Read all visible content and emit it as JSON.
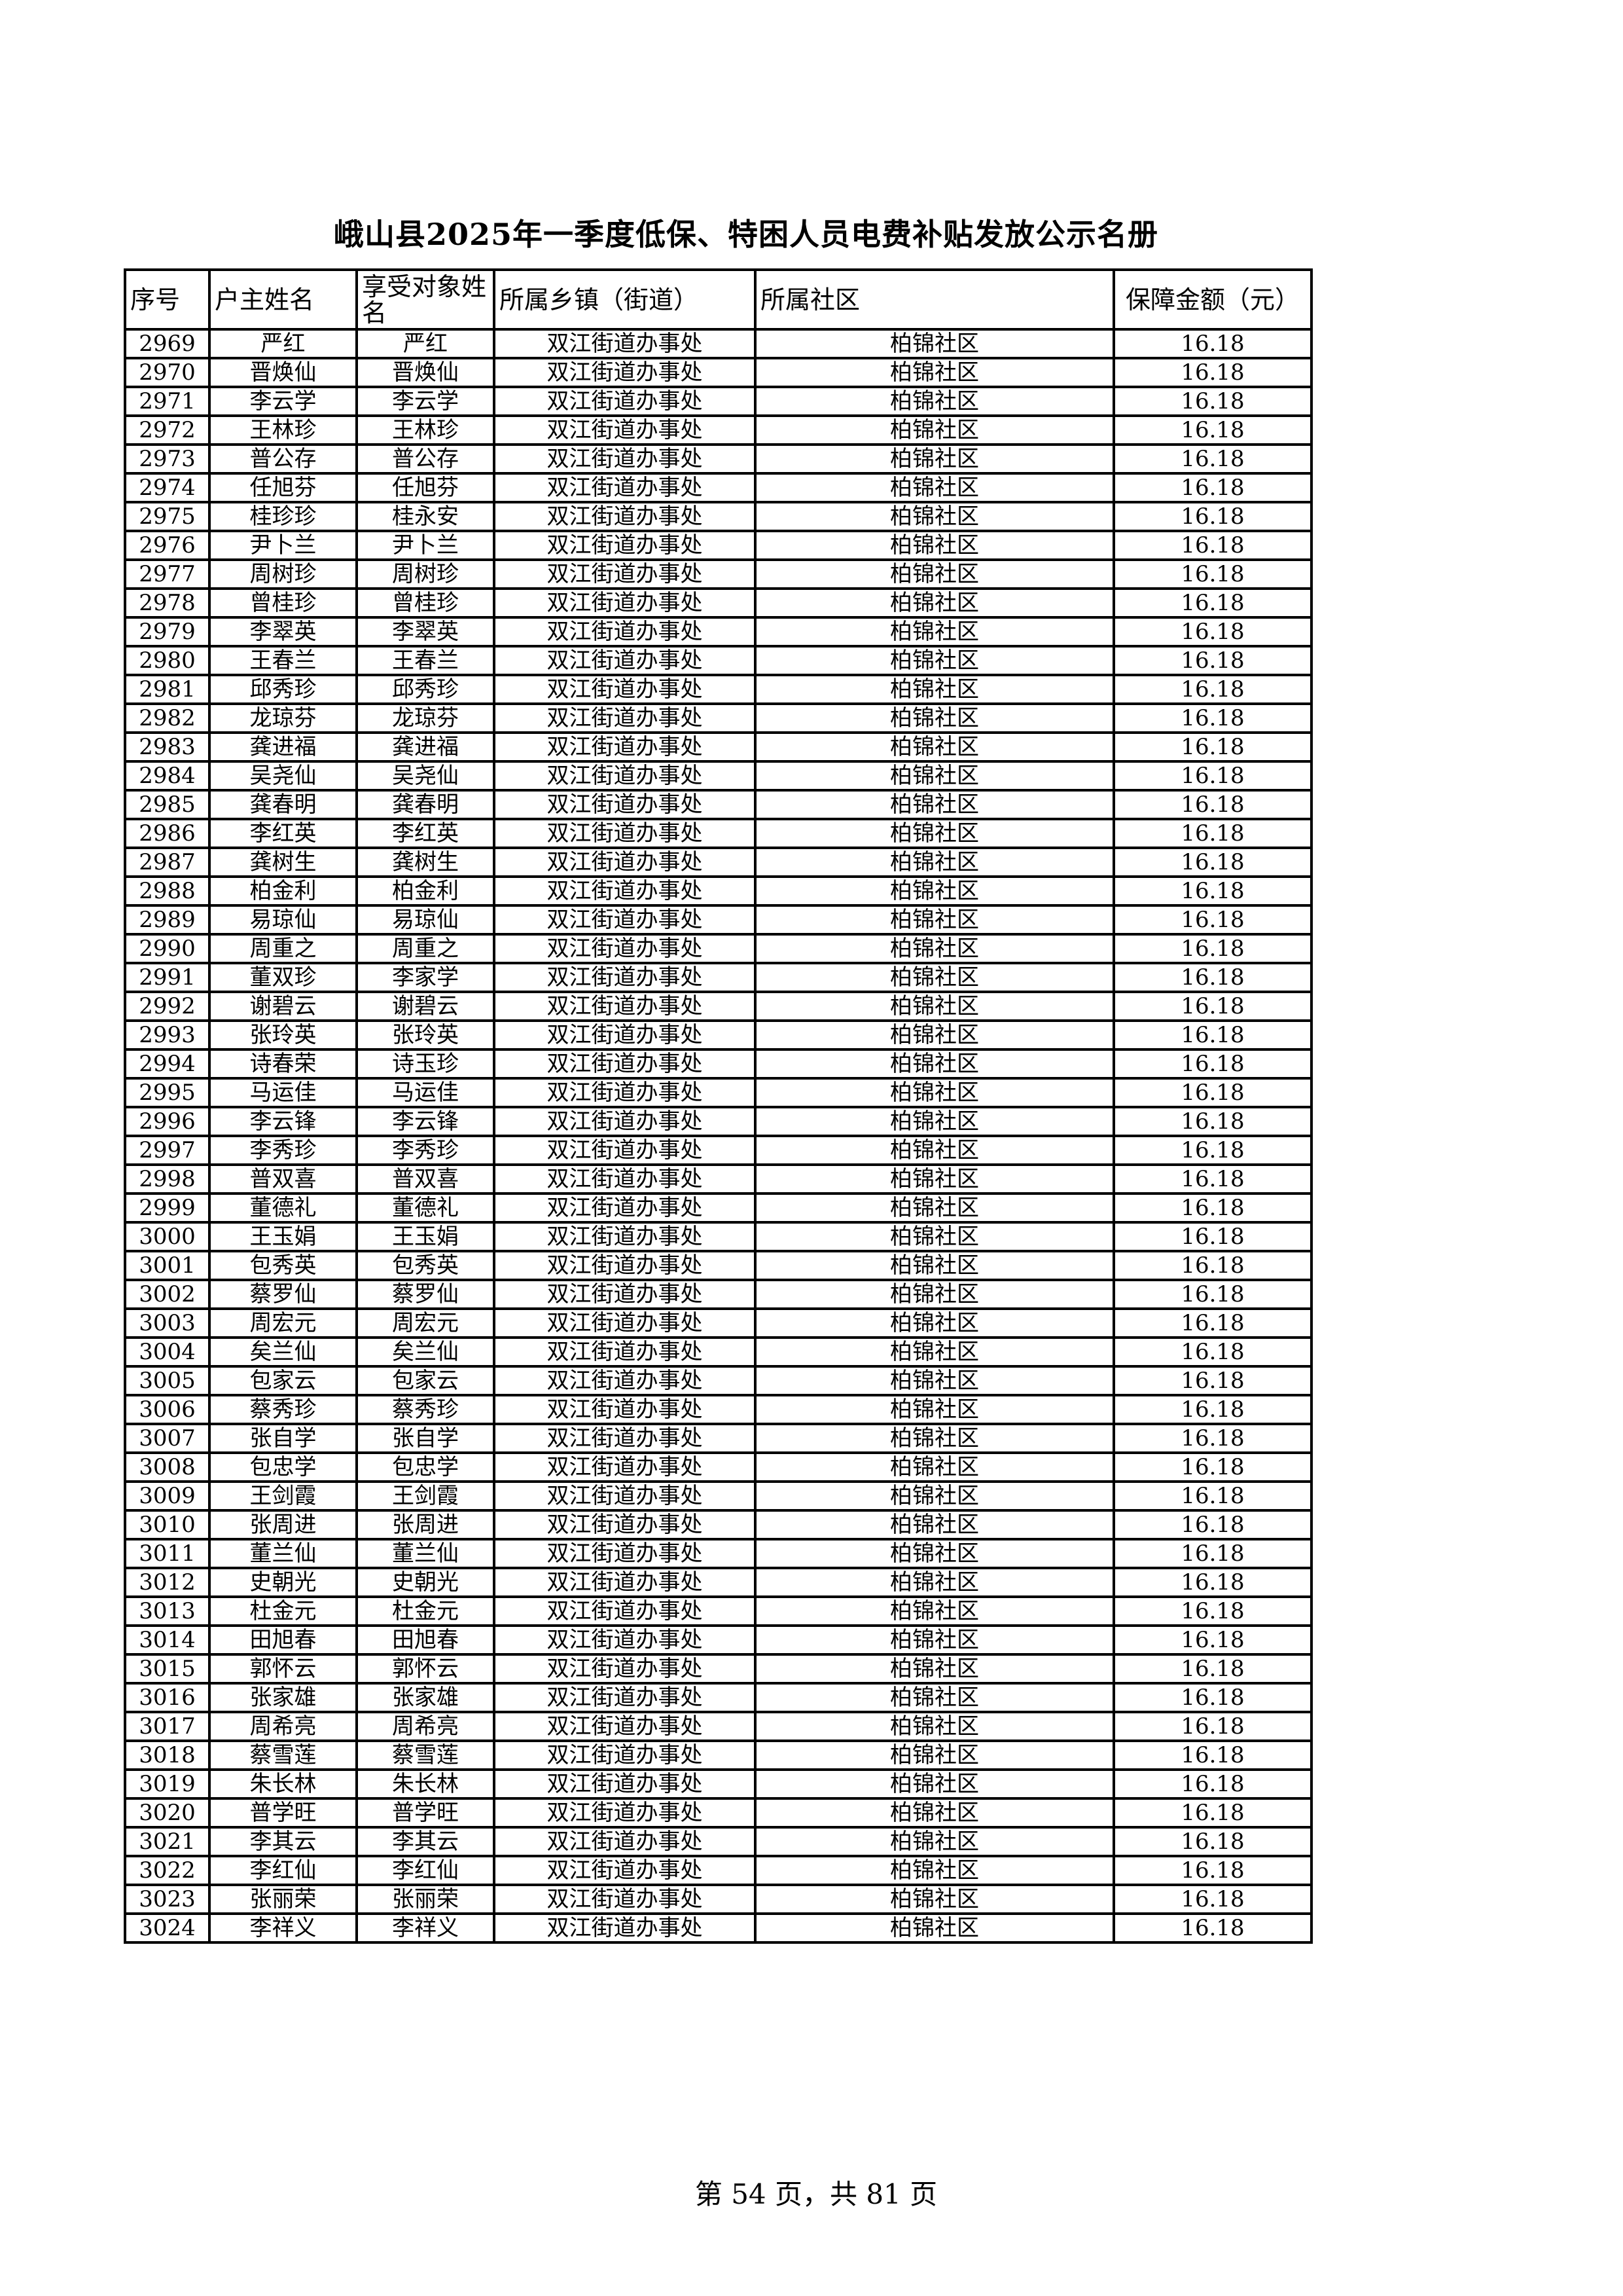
{
  "title": "峨山县2025年一季度低保、特困人员电费补贴发放公示名册",
  "table": {
    "headers": [
      "序号",
      "户主姓名",
      "享受对象姓名",
      "所属乡镇（街道）",
      "所属社区",
      "保障金额（元）"
    ],
    "rows": [
      [
        "2969",
        "严红",
        "严红",
        "双江街道办事处",
        "柏锦社区",
        "16.18"
      ],
      [
        "2970",
        "晋焕仙",
        "晋焕仙",
        "双江街道办事处",
        "柏锦社区",
        "16.18"
      ],
      [
        "2971",
        "李云学",
        "李云学",
        "双江街道办事处",
        "柏锦社区",
        "16.18"
      ],
      [
        "2972",
        "王林珍",
        "王林珍",
        "双江街道办事处",
        "柏锦社区",
        "16.18"
      ],
      [
        "2973",
        "普公存",
        "普公存",
        "双江街道办事处",
        "柏锦社区",
        "16.18"
      ],
      [
        "2974",
        "任旭芬",
        "任旭芬",
        "双江街道办事处",
        "柏锦社区",
        "16.18"
      ],
      [
        "2975",
        "桂珍珍",
        "桂永安",
        "双江街道办事处",
        "柏锦社区",
        "16.18"
      ],
      [
        "2976",
        "尹卜兰",
        "尹卜兰",
        "双江街道办事处",
        "柏锦社区",
        "16.18"
      ],
      [
        "2977",
        "周树珍",
        "周树珍",
        "双江街道办事处",
        "柏锦社区",
        "16.18"
      ],
      [
        "2978",
        "曾桂珍",
        "曾桂珍",
        "双江街道办事处",
        "柏锦社区",
        "16.18"
      ],
      [
        "2979",
        "李翠英",
        "李翠英",
        "双江街道办事处",
        "柏锦社区",
        "16.18"
      ],
      [
        "2980",
        "王春兰",
        "王春兰",
        "双江街道办事处",
        "柏锦社区",
        "16.18"
      ],
      [
        "2981",
        "邱秀珍",
        "邱秀珍",
        "双江街道办事处",
        "柏锦社区",
        "16.18"
      ],
      [
        "2982",
        "龙琼芬",
        "龙琼芬",
        "双江街道办事处",
        "柏锦社区",
        "16.18"
      ],
      [
        "2983",
        "龚进福",
        "龚进福",
        "双江街道办事处",
        "柏锦社区",
        "16.18"
      ],
      [
        "2984",
        "吴尧仙",
        "吴尧仙",
        "双江街道办事处",
        "柏锦社区",
        "16.18"
      ],
      [
        "2985",
        "龚春明",
        "龚春明",
        "双江街道办事处",
        "柏锦社区",
        "16.18"
      ],
      [
        "2986",
        "李红英",
        "李红英",
        "双江街道办事处",
        "柏锦社区",
        "16.18"
      ],
      [
        "2987",
        "龚树生",
        "龚树生",
        "双江街道办事处",
        "柏锦社区",
        "16.18"
      ],
      [
        "2988",
        "柏金利",
        "柏金利",
        "双江街道办事处",
        "柏锦社区",
        "16.18"
      ],
      [
        "2989",
        "易琼仙",
        "易琼仙",
        "双江街道办事处",
        "柏锦社区",
        "16.18"
      ],
      [
        "2990",
        "周重之",
        "周重之",
        "双江街道办事处",
        "柏锦社区",
        "16.18"
      ],
      [
        "2991",
        "董双珍",
        "李家学",
        "双江街道办事处",
        "柏锦社区",
        "16.18"
      ],
      [
        "2992",
        "谢碧云",
        "谢碧云",
        "双江街道办事处",
        "柏锦社区",
        "16.18"
      ],
      [
        "2993",
        "张玲英",
        "张玲英",
        "双江街道办事处",
        "柏锦社区",
        "16.18"
      ],
      [
        "2994",
        "诗春荣",
        "诗玉珍",
        "双江街道办事处",
        "柏锦社区",
        "16.18"
      ],
      [
        "2995",
        "马运佳",
        "马运佳",
        "双江街道办事处",
        "柏锦社区",
        "16.18"
      ],
      [
        "2996",
        "李云锋",
        "李云锋",
        "双江街道办事处",
        "柏锦社区",
        "16.18"
      ],
      [
        "2997",
        "李秀珍",
        "李秀珍",
        "双江街道办事处",
        "柏锦社区",
        "16.18"
      ],
      [
        "2998",
        "普双喜",
        "普双喜",
        "双江街道办事处",
        "柏锦社区",
        "16.18"
      ],
      [
        "2999",
        "董德礼",
        "董德礼",
        "双江街道办事处",
        "柏锦社区",
        "16.18"
      ],
      [
        "3000",
        "王玉娟",
        "王玉娟",
        "双江街道办事处",
        "柏锦社区",
        "16.18"
      ],
      [
        "3001",
        "包秀英",
        "包秀英",
        "双江街道办事处",
        "柏锦社区",
        "16.18"
      ],
      [
        "3002",
        "蔡罗仙",
        "蔡罗仙",
        "双江街道办事处",
        "柏锦社区",
        "16.18"
      ],
      [
        "3003",
        "周宏元",
        "周宏元",
        "双江街道办事处",
        "柏锦社区",
        "16.18"
      ],
      [
        "3004",
        "矣兰仙",
        "矣兰仙",
        "双江街道办事处",
        "柏锦社区",
        "16.18"
      ],
      [
        "3005",
        "包家云",
        "包家云",
        "双江街道办事处",
        "柏锦社区",
        "16.18"
      ],
      [
        "3006",
        "蔡秀珍",
        "蔡秀珍",
        "双江街道办事处",
        "柏锦社区",
        "16.18"
      ],
      [
        "3007",
        "张自学",
        "张自学",
        "双江街道办事处",
        "柏锦社区",
        "16.18"
      ],
      [
        "3008",
        "包忠学",
        "包忠学",
        "双江街道办事处",
        "柏锦社区",
        "16.18"
      ],
      [
        "3009",
        "王剑霞",
        "王剑霞",
        "双江街道办事处",
        "柏锦社区",
        "16.18"
      ],
      [
        "3010",
        "张周进",
        "张周进",
        "双江街道办事处",
        "柏锦社区",
        "16.18"
      ],
      [
        "3011",
        "董兰仙",
        "董兰仙",
        "双江街道办事处",
        "柏锦社区",
        "16.18"
      ],
      [
        "3012",
        "史朝光",
        "史朝光",
        "双江街道办事处",
        "柏锦社区",
        "16.18"
      ],
      [
        "3013",
        "杜金元",
        "杜金元",
        "双江街道办事处",
        "柏锦社区",
        "16.18"
      ],
      [
        "3014",
        "田旭春",
        "田旭春",
        "双江街道办事处",
        "柏锦社区",
        "16.18"
      ],
      [
        "3015",
        "郭怀云",
        "郭怀云",
        "双江街道办事处",
        "柏锦社区",
        "16.18"
      ],
      [
        "3016",
        "张家雄",
        "张家雄",
        "双江街道办事处",
        "柏锦社区",
        "16.18"
      ],
      [
        "3017",
        "周希亮",
        "周希亮",
        "双江街道办事处",
        "柏锦社区",
        "16.18"
      ],
      [
        "3018",
        "蔡雪莲",
        "蔡雪莲",
        "双江街道办事处",
        "柏锦社区",
        "16.18"
      ],
      [
        "3019",
        "朱长林",
        "朱长林",
        "双江街道办事处",
        "柏锦社区",
        "16.18"
      ],
      [
        "3020",
        "普学旺",
        "普学旺",
        "双江街道办事处",
        "柏锦社区",
        "16.18"
      ],
      [
        "3021",
        "李其云",
        "李其云",
        "双江街道办事处",
        "柏锦社区",
        "16.18"
      ],
      [
        "3022",
        "李红仙",
        "李红仙",
        "双江街道办事处",
        "柏锦社区",
        "16.18"
      ],
      [
        "3023",
        "张丽荣",
        "张丽荣",
        "双江街道办事处",
        "柏锦社区",
        "16.18"
      ],
      [
        "3024",
        "李祥义",
        "李祥义",
        "双江街道办事处",
        "柏锦社区",
        "16.18"
      ]
    ]
  },
  "footer": "第 54 页，共 81 页"
}
